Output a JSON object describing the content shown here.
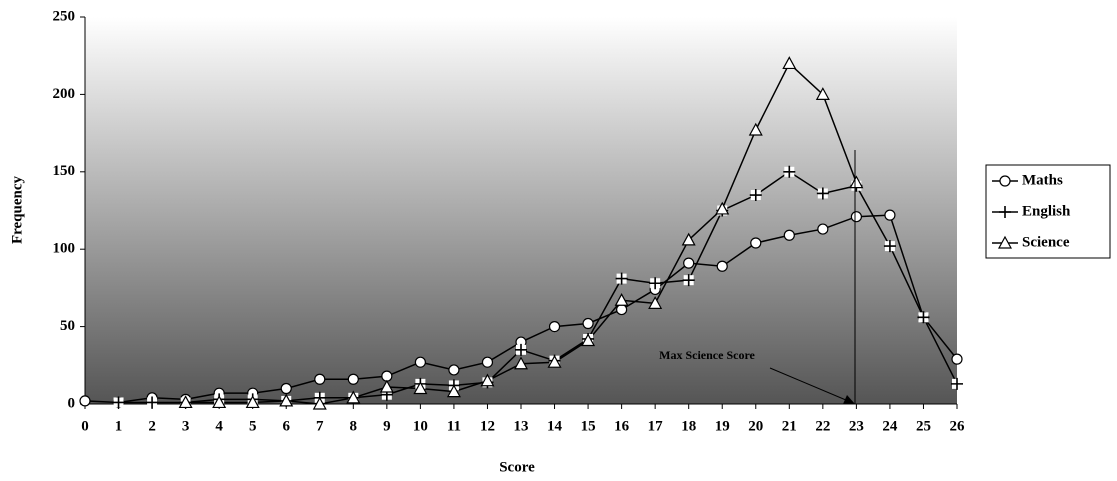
{
  "chart_data": {
    "type": "line",
    "x_label": "Score",
    "y_label": "Frequency",
    "x": [
      0,
      1,
      2,
      3,
      4,
      5,
      6,
      7,
      8,
      9,
      10,
      11,
      12,
      13,
      14,
      15,
      16,
      17,
      18,
      19,
      20,
      21,
      22,
      23,
      24,
      25,
      26
    ],
    "xlim": [
      0,
      26
    ],
    "ylim": [
      0,
      250
    ],
    "yticks": [
      0,
      50,
      100,
      150,
      200,
      250
    ],
    "legend": "right",
    "series": [
      {
        "name": "Maths",
        "color": "#000000",
        "marker": "circle",
        "values": [
          2,
          1,
          4,
          3,
          7,
          7,
          10,
          16,
          16,
          18,
          27,
          22,
          27,
          40,
          50,
          52,
          61,
          74,
          91,
          89,
          104,
          109,
          113,
          121,
          122,
          56,
          29
        ]
      },
      {
        "name": "English",
        "color": "#000000",
        "marker": "plus",
        "values": [
          null,
          1,
          1,
          1,
          3,
          3,
          2,
          4,
          4,
          6,
          13,
          12,
          14,
          35,
          28,
          42,
          81,
          78,
          80,
          125,
          135,
          150,
          136,
          141,
          102,
          56,
          13
        ]
      },
      {
        "name": "Science",
        "color": "#000000",
        "marker": "triangle",
        "values": [
          null,
          null,
          null,
          1,
          1,
          1,
          2,
          0,
          4,
          11,
          10,
          8,
          15,
          26,
          27,
          41,
          67,
          65,
          106,
          126,
          177,
          220,
          200,
          143,
          null,
          null,
          null
        ]
      }
    ],
    "annotation": "Max Science Score"
  }
}
